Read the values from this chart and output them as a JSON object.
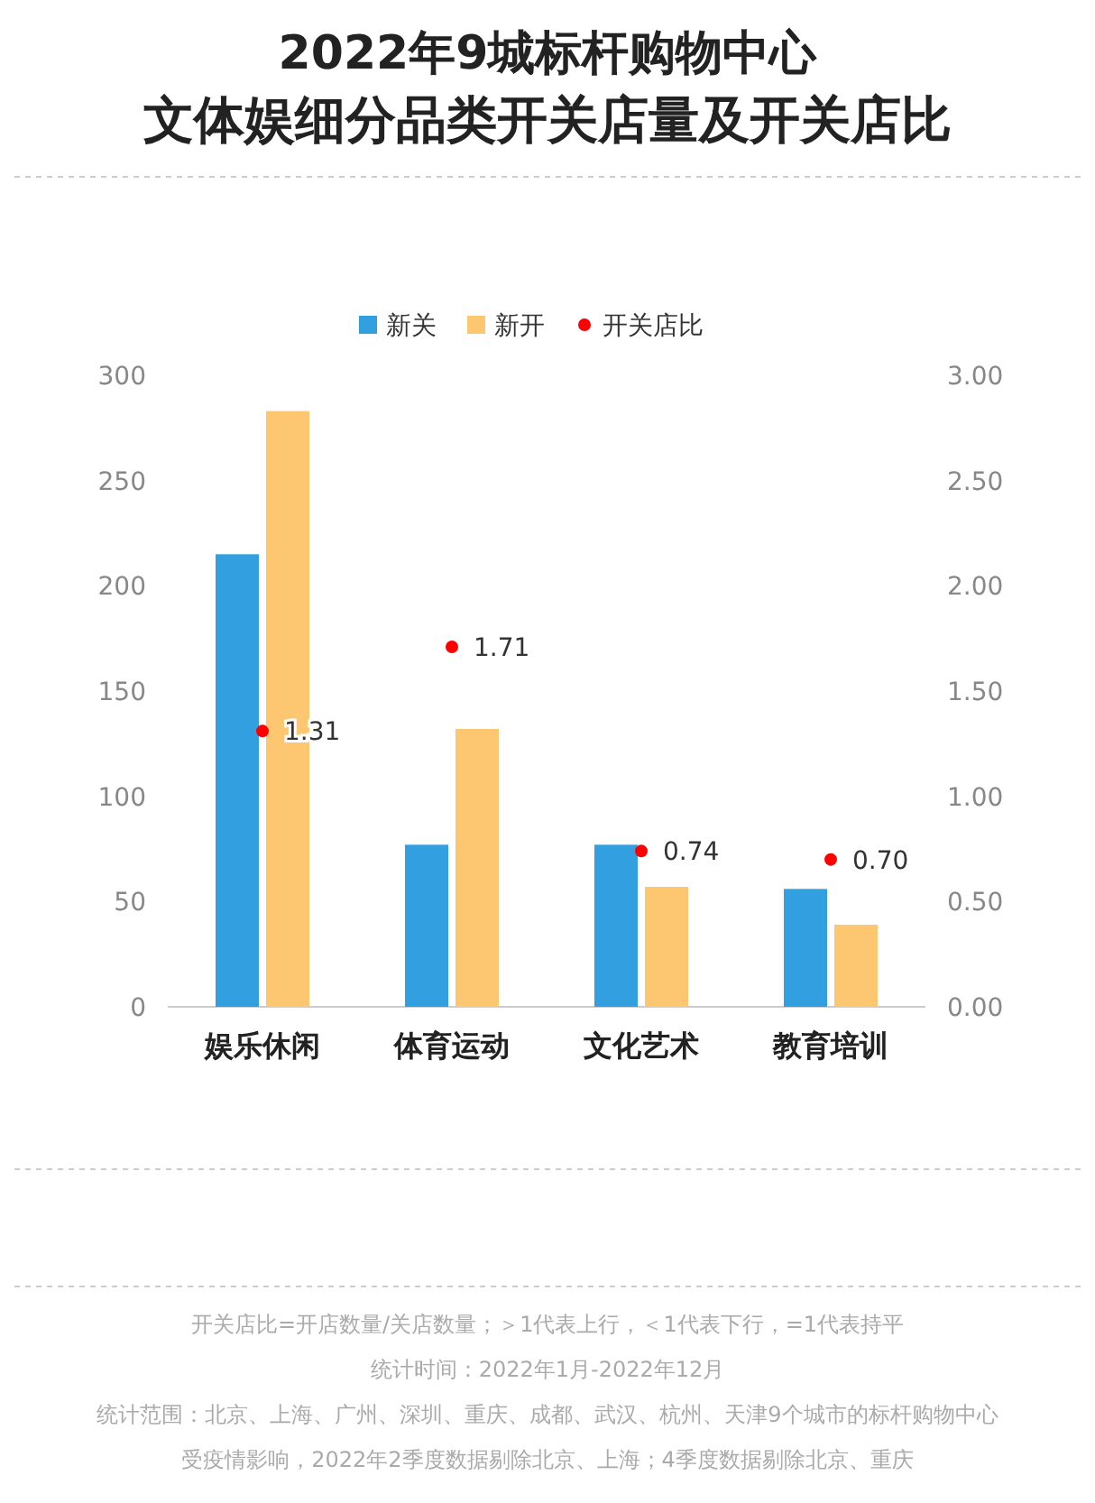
{
  "chart_data": {
    "type": "bar",
    "title": "2022年9城标杆购物中心",
    "subtitle": "文体娱细分品类开关店量及开关店比",
    "categories": [
      "娱乐休闲",
      "体育运动",
      "文化艺术",
      "教育培训"
    ],
    "series": [
      {
        "name": "新关",
        "color": "#319fe0",
        "values": [
          215,
          77,
          77,
          56
        ]
      },
      {
        "name": "新开",
        "color": "#fdc771",
        "values": [
          283,
          132,
          57,
          39
        ]
      },
      {
        "name": "开关店比",
        "type": "scatter",
        "axis": "y2",
        "color": "#ff0000",
        "values": [
          1.31,
          1.71,
          0.74,
          0.7
        ],
        "value_labels": [
          "1.31",
          "1.71",
          "0.74",
          "0.70"
        ]
      }
    ],
    "ylim": [
      0,
      300
    ],
    "yticks": [
      0,
      50,
      100,
      150,
      200,
      250,
      300
    ],
    "y2lim": [
      0,
      3
    ],
    "y2ticks": [
      {
        "value": 0,
        "label": "0.00"
      },
      {
        "value": 0.5,
        "label": "0.50"
      },
      {
        "value": 1,
        "label": "1.00"
      },
      {
        "value": 1.5,
        "label": "1.50"
      },
      {
        "value": 2,
        "label": "2.00"
      },
      {
        "value": 2.5,
        "label": "2.50"
      },
      {
        "value": 3,
        "label": "3.00"
      }
    ],
    "legend": "top",
    "grid": false,
    "marker": "circle",
    "annotations": [
      "开关店比=开店数量/关店数量；＞1代表上行，＜1代表下行，=1代表持平",
      "统计时间：2022年1月-2022年12月",
      "统计范围：北京、上海、广州、深圳、重庆、成都、武汉、杭州、天津9个城市的标杆购物中心",
      "受疫情影响，2022年2季度数据剔除北京、上海；4季度数据剔除北京、重庆"
    ]
  }
}
